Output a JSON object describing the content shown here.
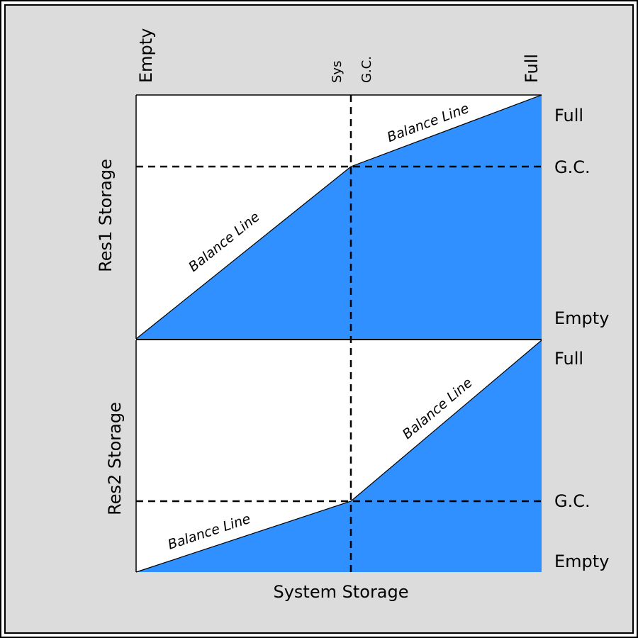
{
  "colors": {
    "fill": "#3190ff",
    "background": "#dcdcdc",
    "plot_background": "#ffffff",
    "stroke": "#000000"
  },
  "diagram": {
    "x_axis_label": "System Storage",
    "top_labels": {
      "empty": "Empty",
      "sys": "Sys",
      "gc": "G.C.",
      "full": "Full"
    },
    "upper_panel": {
      "y_axis_label": "Res1 Storage",
      "right_labels": {
        "full": "Full",
        "gc": "G.C.",
        "empty": "Empty"
      },
      "balance_left": "Balance Line",
      "balance_right": "Balance Line"
    },
    "lower_panel": {
      "y_axis_label": "Res2 Storage",
      "right_labels": {
        "full": "Full",
        "gc": "G.C.",
        "empty": "Empty"
      },
      "balance_left": "Balance Line",
      "balance_right": "Balance Line"
    }
  }
}
